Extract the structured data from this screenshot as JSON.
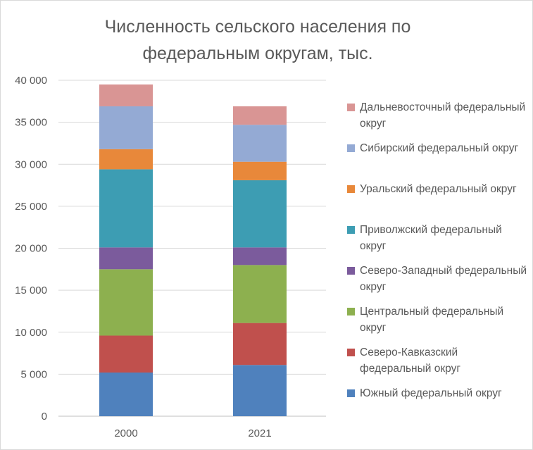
{
  "chart_data": {
    "type": "bar",
    "stacked": true,
    "title": "Численность сельского населения по\nфедеральным округам, тыс.",
    "xlabel": "",
    "ylabel": "",
    "categories": [
      "2000",
      "2021"
    ],
    "ylim": [
      0,
      40000
    ],
    "yticks": [
      0,
      5000,
      10000,
      15000,
      20000,
      25000,
      30000,
      35000,
      40000
    ],
    "ytick_labels": [
      "0",
      "5 000",
      "10 000",
      "15 000",
      "20 000",
      "25 000",
      "30 000",
      "35 000",
      "40 000"
    ],
    "grid": true,
    "legend_position": "right",
    "series": [
      {
        "name": "Южный федеральный округ",
        "color": "#4f81bd",
        "values": [
          5200,
          6100
        ]
      },
      {
        "name": "Северо-Кавказский федеральный округ",
        "color": "#c0504d",
        "values": [
          4400,
          5000
        ]
      },
      {
        "name": "Центральный федеральный округ",
        "color": "#8db04f",
        "values": [
          7900,
          6900
        ]
      },
      {
        "name": "Северо-Западный федеральный округ",
        "color": "#7b5b9c",
        "values": [
          2600,
          2100
        ]
      },
      {
        "name": "Приволжский федеральный округ",
        "color": "#3d9db3",
        "values": [
          9300,
          8000
        ]
      },
      {
        "name": "Уральский федеральный округ",
        "color": "#e8883a",
        "values": [
          2400,
          2200
        ]
      },
      {
        "name": "Сибирский федеральный округ",
        "color": "#94aad4",
        "values": [
          5100,
          4400
        ]
      },
      {
        "name": "Дальневосточный федеральный округ",
        "color": "#d99594",
        "values": [
          2600,
          2200
        ]
      }
    ]
  }
}
